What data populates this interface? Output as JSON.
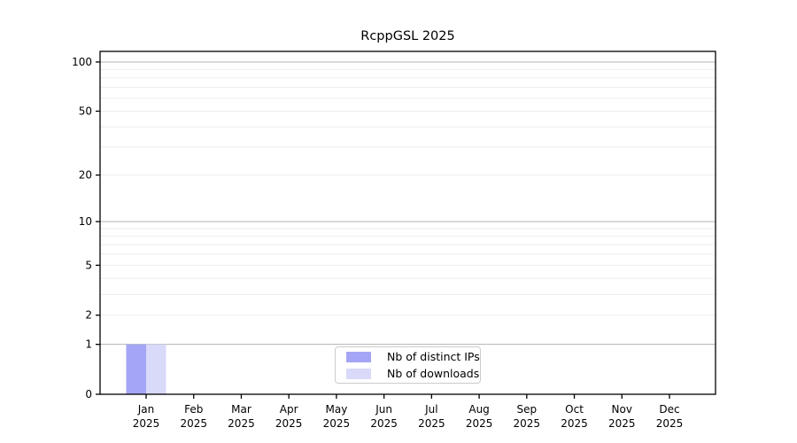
{
  "chart_data": {
    "type": "bar",
    "title": "RcppGSL 2025",
    "x_labels": [
      {
        "line1": "Jan",
        "line2": "2025"
      },
      {
        "line1": "Feb",
        "line2": "2025"
      },
      {
        "line1": "Mar",
        "line2": "2025"
      },
      {
        "line1": "Apr",
        "line2": "2025"
      },
      {
        "line1": "May",
        "line2": "2025"
      },
      {
        "line1": "Jun",
        "line2": "2025"
      },
      {
        "line1": "Jul",
        "line2": "2025"
      },
      {
        "line1": "Aug",
        "line2": "2025"
      },
      {
        "line1": "Sep",
        "line2": "2025"
      },
      {
        "line1": "Oct",
        "line2": "2025"
      },
      {
        "line1": "Nov",
        "line2": "2025"
      },
      {
        "line1": "Dec",
        "line2": "2025"
      }
    ],
    "series": [
      {
        "name": "Nb of distinct IPs",
        "color": "#a5a5f5",
        "values": [
          1,
          0,
          0,
          0,
          0,
          0,
          0,
          0,
          0,
          0,
          0,
          0
        ]
      },
      {
        "name": "Nb of downloads",
        "color": "#d9d9fa",
        "values": [
          1,
          0,
          0,
          0,
          0,
          0,
          0,
          0,
          0,
          0,
          0,
          0
        ]
      }
    ],
    "y_axis": {
      "scale": "log10(value+1)",
      "tick_values": [
        0,
        1,
        2,
        5,
        10,
        20,
        50,
        100
      ],
      "major_gridlines": [
        1,
        10,
        100
      ],
      "minor_gridlines": [
        2,
        3,
        4,
        5,
        6,
        7,
        8,
        9,
        20,
        30,
        40,
        50,
        60,
        70,
        80,
        90
      ],
      "ylim": [
        0,
        116
      ],
      "grid": true
    },
    "legend_position": "bottom-center",
    "colors": {
      "major_grid": "#b3b3b3",
      "minor_grid": "#ededed",
      "axis": "#000000",
      "text": "#000000",
      "legend_border": "#cccccc",
      "background": "#ffffff"
    }
  }
}
